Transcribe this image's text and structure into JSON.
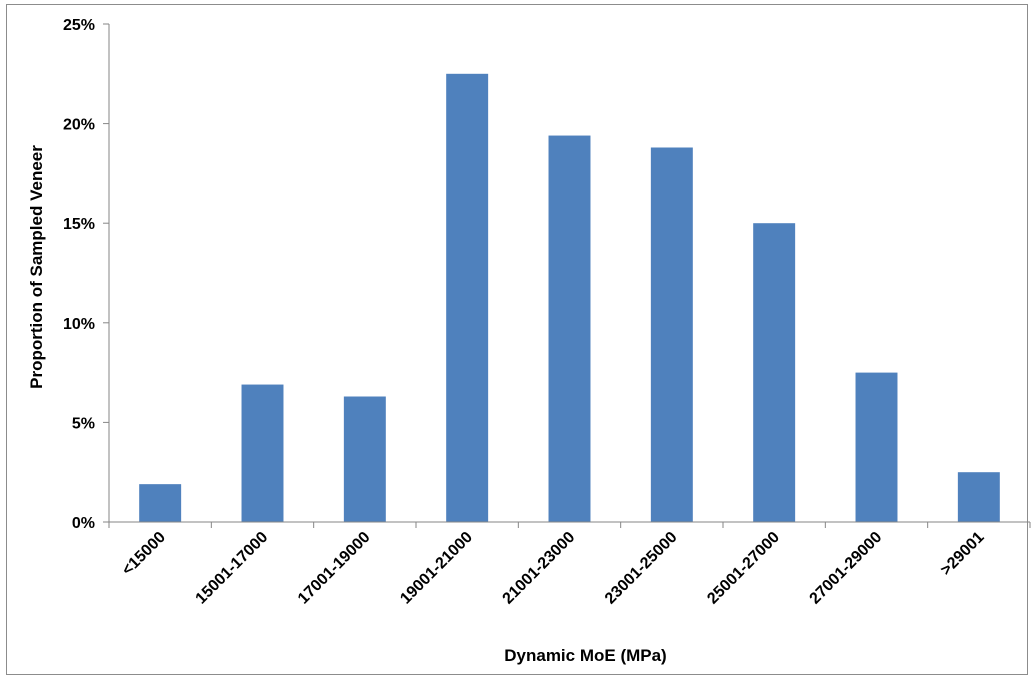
{
  "chart_data": {
    "type": "bar",
    "title": "",
    "xlabel": "Dynamic MoE (MPa)",
    "ylabel": "Proportion of Sampled Veneer",
    "categories": [
      "<15000",
      "15001-17000",
      "17001-19000",
      "19001-21000",
      "21001-23000",
      "23001-25000",
      "25001-27000",
      "27001-29000",
      ">29001"
    ],
    "values": [
      0.019,
      0.069,
      0.063,
      0.225,
      0.194,
      0.188,
      0.15,
      0.075,
      0.025
    ],
    "ylim": [
      0,
      0.25
    ],
    "yticks": [
      0,
      0.05,
      0.1,
      0.15,
      0.2,
      0.25
    ],
    "ytick_labels": [
      "0%",
      "5%",
      "10%",
      "15%",
      "20%",
      "25%"
    ],
    "grid": false,
    "legend": "none",
    "colors": {
      "bar": "#4f81bd",
      "axis": "#868686"
    }
  }
}
